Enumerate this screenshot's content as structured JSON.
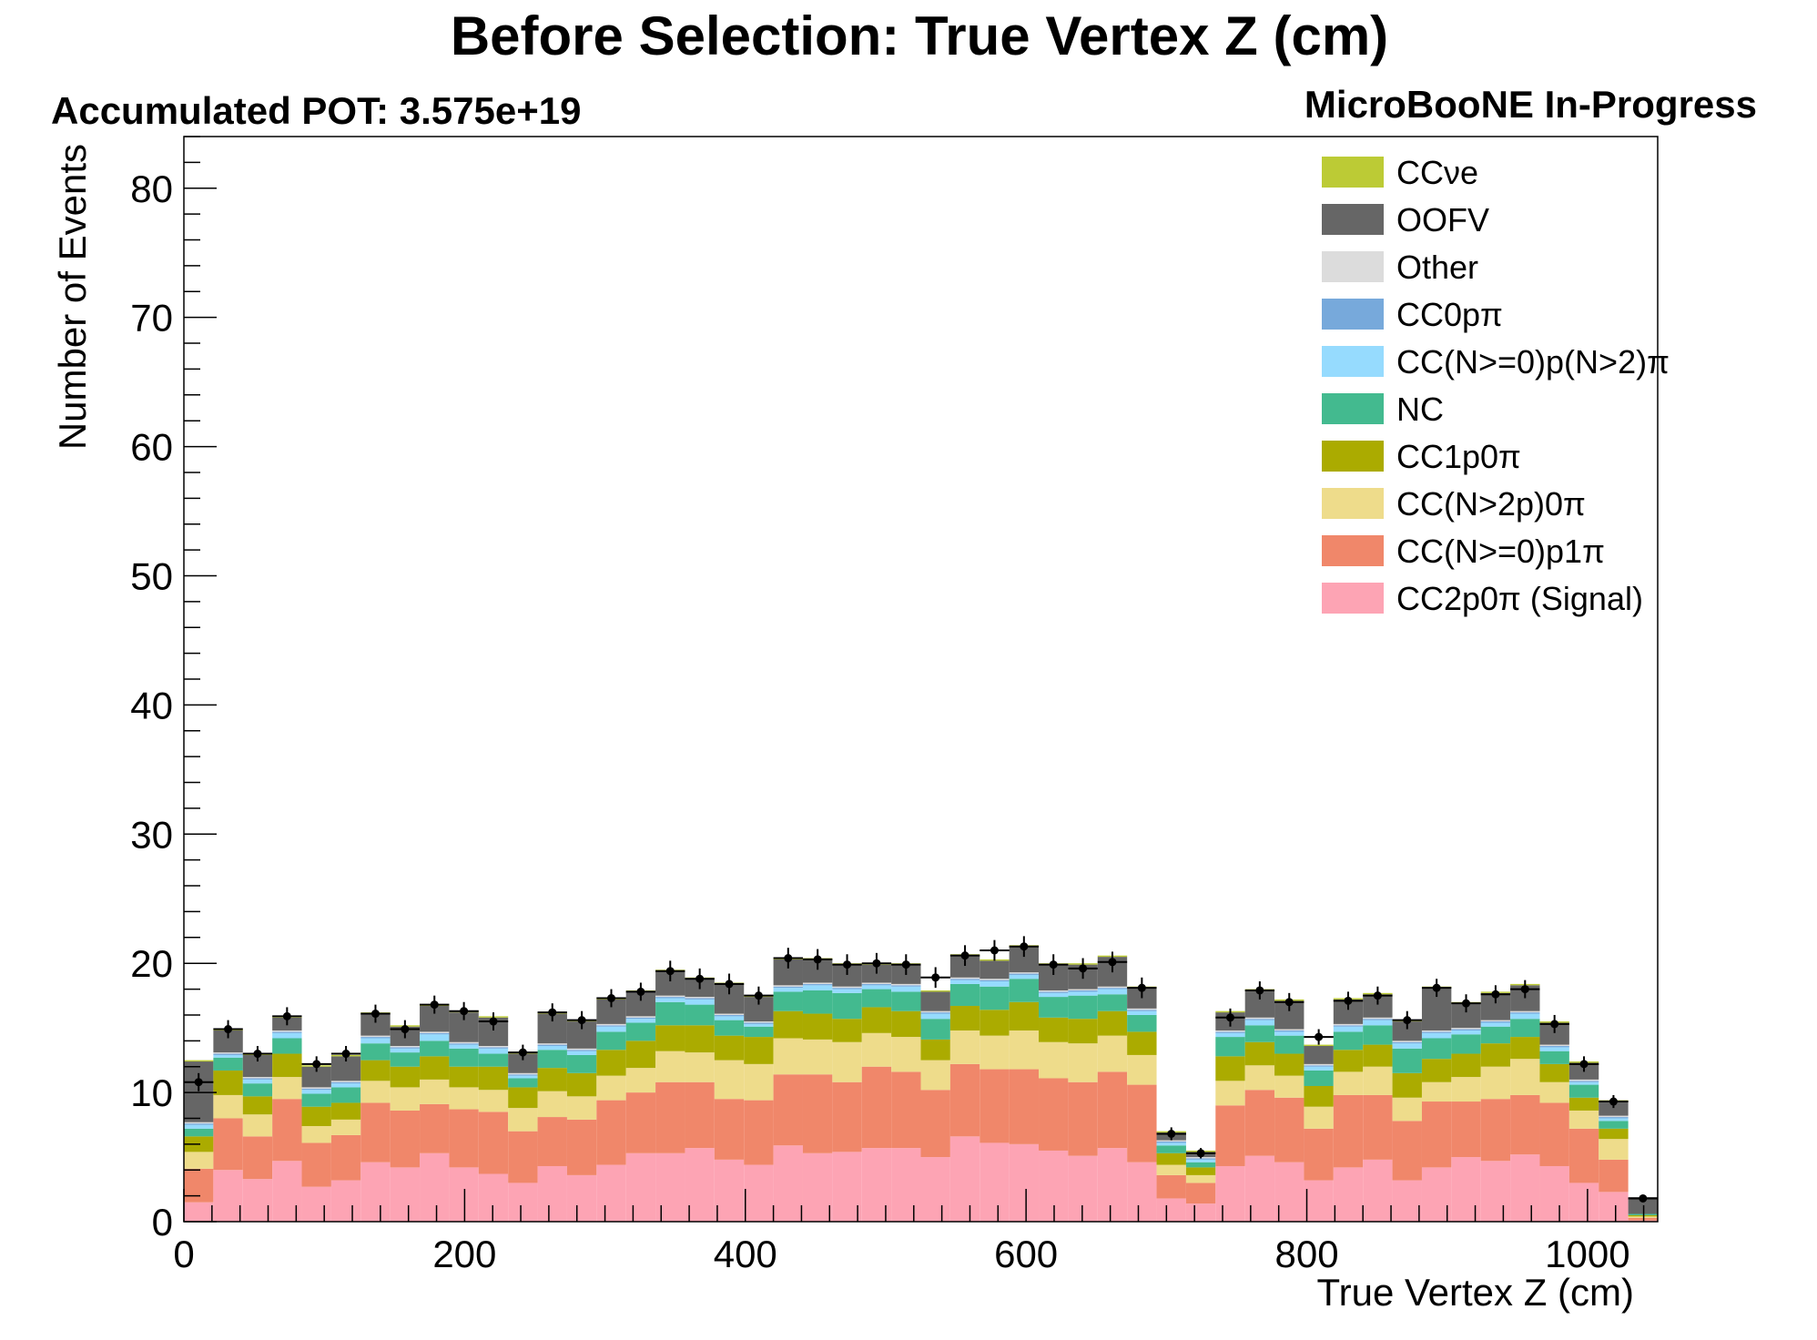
{
  "chart_data": {
    "type": "bar",
    "stacked": true,
    "title": "Before Selection: True Vertex Z (cm)",
    "pot_label": "Accumulated POT: 3.575e+19",
    "experiment_label": "MicroBooNE In-Progress",
    "xlabel": "True Vertex Z (cm)",
    "ylabel": "Number of Events",
    "xlim": [
      0,
      1050
    ],
    "ylim": [
      0,
      84
    ],
    "bin_width": 21,
    "x_ticks": [
      0,
      200,
      400,
      600,
      800,
      1000
    ],
    "y_ticks": [
      0,
      10,
      20,
      30,
      40,
      50,
      60,
      70,
      80
    ],
    "legend_position": "top-right",
    "series": [
      {
        "name": "CC2p0π (Signal)",
        "color": "#fda4b4",
        "values": [
          1.5,
          4.0,
          3.3,
          4.7,
          2.7,
          3.2,
          4.6,
          4.2,
          5.3,
          4.2,
          3.7,
          3.0,
          4.3,
          3.6,
          4.4,
          5.3,
          5.3,
          5.7,
          4.8,
          4.4,
          5.9,
          5.3,
          5.4,
          5.7,
          5.7,
          5.0,
          6.6,
          6.1,
          6.0,
          5.5,
          5.1,
          5.7,
          4.6,
          1.8,
          1.4,
          4.3,
          5.1,
          4.6,
          3.2,
          4.2,
          4.8,
          3.2,
          4.2,
          5.0,
          4.7,
          5.2,
          4.3,
          3.0,
          2.3,
          0.1
        ]
      },
      {
        "name": "CC(N>=0)p1π",
        "color": "#f0876a",
        "values": [
          2.6,
          4.0,
          3.3,
          4.8,
          3.4,
          3.5,
          4.6,
          4.4,
          3.8,
          4.5,
          4.8,
          4.0,
          3.8,
          4.3,
          5.0,
          4.7,
          5.5,
          5.1,
          4.7,
          5.0,
          5.5,
          6.1,
          5.4,
          6.3,
          5.9,
          5.2,
          5.6,
          5.7,
          5.8,
          5.6,
          5.7,
          5.9,
          6.0,
          1.8,
          1.6,
          4.7,
          5.1,
          5.0,
          4.0,
          5.6,
          5.0,
          4.6,
          5.1,
          4.3,
          4.8,
          4.6,
          4.9,
          4.2,
          2.5,
          0.2
        ]
      },
      {
        "name": "CC(N>2p)0π",
        "color": "#eedc8b",
        "values": [
          1.3,
          1.8,
          1.7,
          1.7,
          1.3,
          1.2,
          1.7,
          1.8,
          1.9,
          1.7,
          1.7,
          1.8,
          2.0,
          1.8,
          1.9,
          1.9,
          2.4,
          2.3,
          3.0,
          2.8,
          2.8,
          2.7,
          3.1,
          2.6,
          2.7,
          2.3,
          2.6,
          2.6,
          3.0,
          2.8,
          3.0,
          2.8,
          2.3,
          0.8,
          0.6,
          1.9,
          1.9,
          1.7,
          1.7,
          1.8,
          2.2,
          1.8,
          1.5,
          1.9,
          2.5,
          2.8,
          1.6,
          1.4,
          1.6,
          0.1
        ]
      },
      {
        "name": "CC1p0π",
        "color": "#abab00",
        "values": [
          1.2,
          1.9,
          1.4,
          1.8,
          1.5,
          1.3,
          1.6,
          1.6,
          1.8,
          1.6,
          1.8,
          1.6,
          1.8,
          1.8,
          2.0,
          2.1,
          2.0,
          2.1,
          1.9,
          2.1,
          2.1,
          2.0,
          1.8,
          2.0,
          2.0,
          1.6,
          1.9,
          2.0,
          2.2,
          1.9,
          1.9,
          1.9,
          1.8,
          0.9,
          0.6,
          1.9,
          1.8,
          1.7,
          1.6,
          1.7,
          1.7,
          1.9,
          1.8,
          1.8,
          1.8,
          1.7,
          1.4,
          1.0,
          0.8,
          0.1
        ]
      },
      {
        "name": "NC",
        "color": "#43ba8f",
        "values": [
          0.6,
          1.0,
          1.0,
          1.2,
          1.0,
          1.2,
          1.3,
          1.1,
          1.2,
          1.4,
          1.0,
          0.7,
          1.4,
          1.4,
          1.4,
          1.4,
          1.8,
          1.6,
          1.2,
          0.8,
          1.5,
          1.8,
          2.0,
          1.4,
          1.5,
          1.6,
          1.7,
          1.8,
          1.8,
          1.6,
          1.8,
          1.3,
          1.3,
          0.6,
          0.4,
          1.5,
          1.3,
          1.4,
          1.2,
          1.4,
          1.5,
          1.9,
          1.6,
          1.5,
          1.3,
          1.4,
          1.0,
          1.0,
          0.6,
          0.1
        ]
      },
      {
        "name": "CC(N>=0)p(N>2)π",
        "color": "#96dbfe",
        "values": [
          0.3,
          0.2,
          0.3,
          0.4,
          0.3,
          0.3,
          0.4,
          0.3,
          0.5,
          0.3,
          0.4,
          0.2,
          0.3,
          0.3,
          0.4,
          0.3,
          0.3,
          0.4,
          0.3,
          0.2,
          0.3,
          0.4,
          0.3,
          0.3,
          0.4,
          0.4,
          0.3,
          0.4,
          0.3,
          0.3,
          0.3,
          0.4,
          0.3,
          0.2,
          0.2,
          0.3,
          0.4,
          0.3,
          0.3,
          0.4,
          0.4,
          0.4,
          0.4,
          0.3,
          0.3,
          0.4,
          0.3,
          0.2,
          0.2,
          0.0
        ]
      },
      {
        "name": "CC0pπ",
        "color": "#77a9db",
        "values": [
          0.1,
          0.1,
          0.1,
          0.1,
          0.1,
          0.1,
          0.1,
          0.1,
          0.1,
          0.1,
          0.1,
          0.1,
          0.1,
          0.1,
          0.1,
          0.1,
          0.1,
          0.1,
          0.1,
          0.1,
          0.1,
          0.1,
          0.1,
          0.1,
          0.1,
          0.1,
          0.1,
          0.1,
          0.1,
          0.1,
          0.1,
          0.1,
          0.1,
          0.1,
          0.1,
          0.1,
          0.1,
          0.1,
          0.1,
          0.1,
          0.1,
          0.1,
          0.1,
          0.1,
          0.1,
          0.1,
          0.1,
          0.1,
          0.1,
          0.0
        ]
      },
      {
        "name": "Other",
        "color": "#dcdcdc",
        "values": [
          0.1,
          0.1,
          0.1,
          0.1,
          0.1,
          0.1,
          0.1,
          0.1,
          0.1,
          0.1,
          0.1,
          0.1,
          0.1,
          0.1,
          0.1,
          0.1,
          0.1,
          0.1,
          0.1,
          0.1,
          0.1,
          0.1,
          0.1,
          0.1,
          0.1,
          0.1,
          0.1,
          0.1,
          0.1,
          0.1,
          0.1,
          0.1,
          0.1,
          0.1,
          0.1,
          0.1,
          0.1,
          0.1,
          0.1,
          0.1,
          0.1,
          0.1,
          0.1,
          0.1,
          0.1,
          0.1,
          0.1,
          0.1,
          0.1,
          0.0
        ]
      },
      {
        "name": "OOFV",
        "color": "#666666",
        "values": [
          4.7,
          1.7,
          1.7,
          1.0,
          1.6,
          1.9,
          1.7,
          1.5,
          2.0,
          2.3,
          2.2,
          1.5,
          2.3,
          2.1,
          1.9,
          1.9,
          1.9,
          1.4,
          2.3,
          1.9,
          2.0,
          1.8,
          1.7,
          1.4,
          1.5,
          1.5,
          1.7,
          1.4,
          2.0,
          2.0,
          1.9,
          2.3,
          1.6,
          0.6,
          0.4,
          1.4,
          2.1,
          2.2,
          1.4,
          1.9,
          1.8,
          1.5,
          3.3,
          1.9,
          2.1,
          2.0,
          1.7,
          1.3,
          1.1,
          1.3
        ]
      },
      {
        "name": "CCνe",
        "color": "#bccb35",
        "values": [
          0.1,
          0.1,
          0.1,
          0.1,
          0.1,
          0.1,
          0.1,
          0.1,
          0.1,
          0.1,
          0.1,
          0.1,
          0.1,
          0.1,
          0.1,
          0.1,
          0.1,
          0.1,
          0.1,
          0.1,
          0.1,
          0.1,
          0.1,
          0.1,
          0.1,
          0.1,
          0.1,
          0.1,
          0.1,
          0.1,
          0.1,
          0.1,
          0.1,
          0.1,
          0.1,
          0.1,
          0.1,
          0.1,
          0.1,
          0.1,
          0.1,
          0.1,
          0.1,
          0.1,
          0.1,
          0.1,
          0.1,
          0.1,
          0.1,
          0.0
        ]
      }
    ],
    "legend_order": [
      9,
      8,
      7,
      6,
      5,
      4,
      3,
      2,
      1,
      0
    ],
    "data_points": [
      10.8,
      14.9,
      13.0,
      15.9,
      12.2,
      13.0,
      16.1,
      14.9,
      16.8,
      16.3,
      15.5,
      13.1,
      16.2,
      15.6,
      17.3,
      17.8,
      19.4,
      18.8,
      18.4,
      17.5,
      20.4,
      20.3,
      19.9,
      20.0,
      19.9,
      18.9,
      20.6,
      21.0,
      21.3,
      19.9,
      19.6,
      20.1,
      18.1,
      6.8,
      5.3,
      15.8,
      17.9,
      17.0,
      14.3,
      17.1,
      17.5,
      15.6,
      18.1,
      16.9,
      17.6,
      18.0,
      15.3,
      12.2,
      9.3,
      1.8
    ],
    "data_errors": [
      0.7,
      0.7,
      0.6,
      0.7,
      0.6,
      0.6,
      0.7,
      0.7,
      0.7,
      0.7,
      0.7,
      0.6,
      0.7,
      0.7,
      0.7,
      0.7,
      0.8,
      0.8,
      0.8,
      0.7,
      0.8,
      0.8,
      0.8,
      0.8,
      0.8,
      0.8,
      0.8,
      0.8,
      0.8,
      0.8,
      0.8,
      0.8,
      0.8,
      0.5,
      0.4,
      0.7,
      0.7,
      0.7,
      0.6,
      0.7,
      0.7,
      0.7,
      0.7,
      0.7,
      0.7,
      0.7,
      0.7,
      0.6,
      0.5,
      0.2
    ]
  }
}
